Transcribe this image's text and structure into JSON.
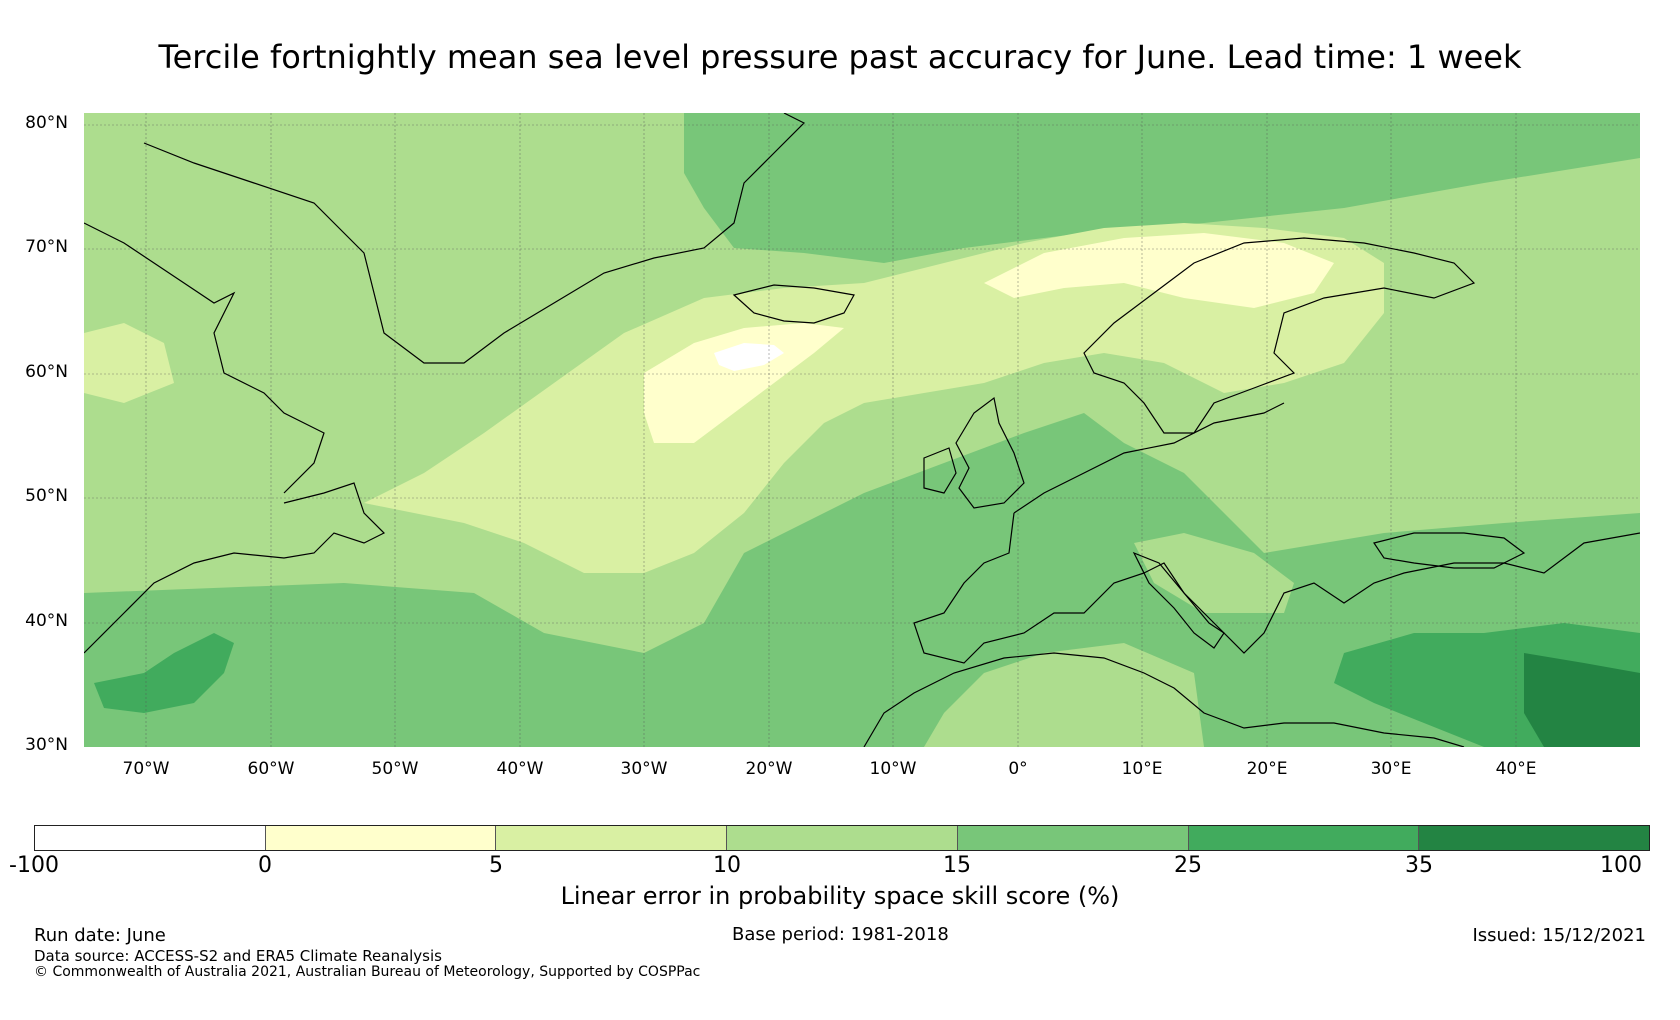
{
  "title": "Tercile fortnightly mean sea level pressure past accuracy for June. Lead time: 1 week",
  "map": {
    "lat_labels": [
      "80°N",
      "70°N",
      "60°N",
      "50°N",
      "40°N",
      "30°N"
    ],
    "lon_labels": [
      "70°W",
      "60°W",
      "50°W",
      "40°W",
      "30°W",
      "20°W",
      "10°W",
      "0°",
      "10°E",
      "20°E",
      "30°E",
      "40°E"
    ],
    "extent": {
      "lon_min": -75,
      "lon_max": 50,
      "lat_min": 30,
      "lat_max": 81
    }
  },
  "colorbar": {
    "label": "Linear error in probability space skill score (%)",
    "ticks": [
      "-100",
      "0",
      "5",
      "10",
      "15",
      "25",
      "35",
      "100"
    ],
    "colors": [
      "#ffffff",
      "#ffffcc",
      "#d9f0a3",
      "#addd8e",
      "#78c679",
      "#41ab5d",
      "#238443"
    ]
  },
  "footer": {
    "run_date": "Run date: June",
    "base_period": "Base period: 1981-2018",
    "issued": "Issued: 15/12/2021",
    "data_source": "Data source: ACCESS-S2 and ERA5 Climate Reanalysis",
    "copyright": "© Commonwealth of Australia 2021, Australian Bureau of Meteorology, Supported by COSPPac"
  }
}
